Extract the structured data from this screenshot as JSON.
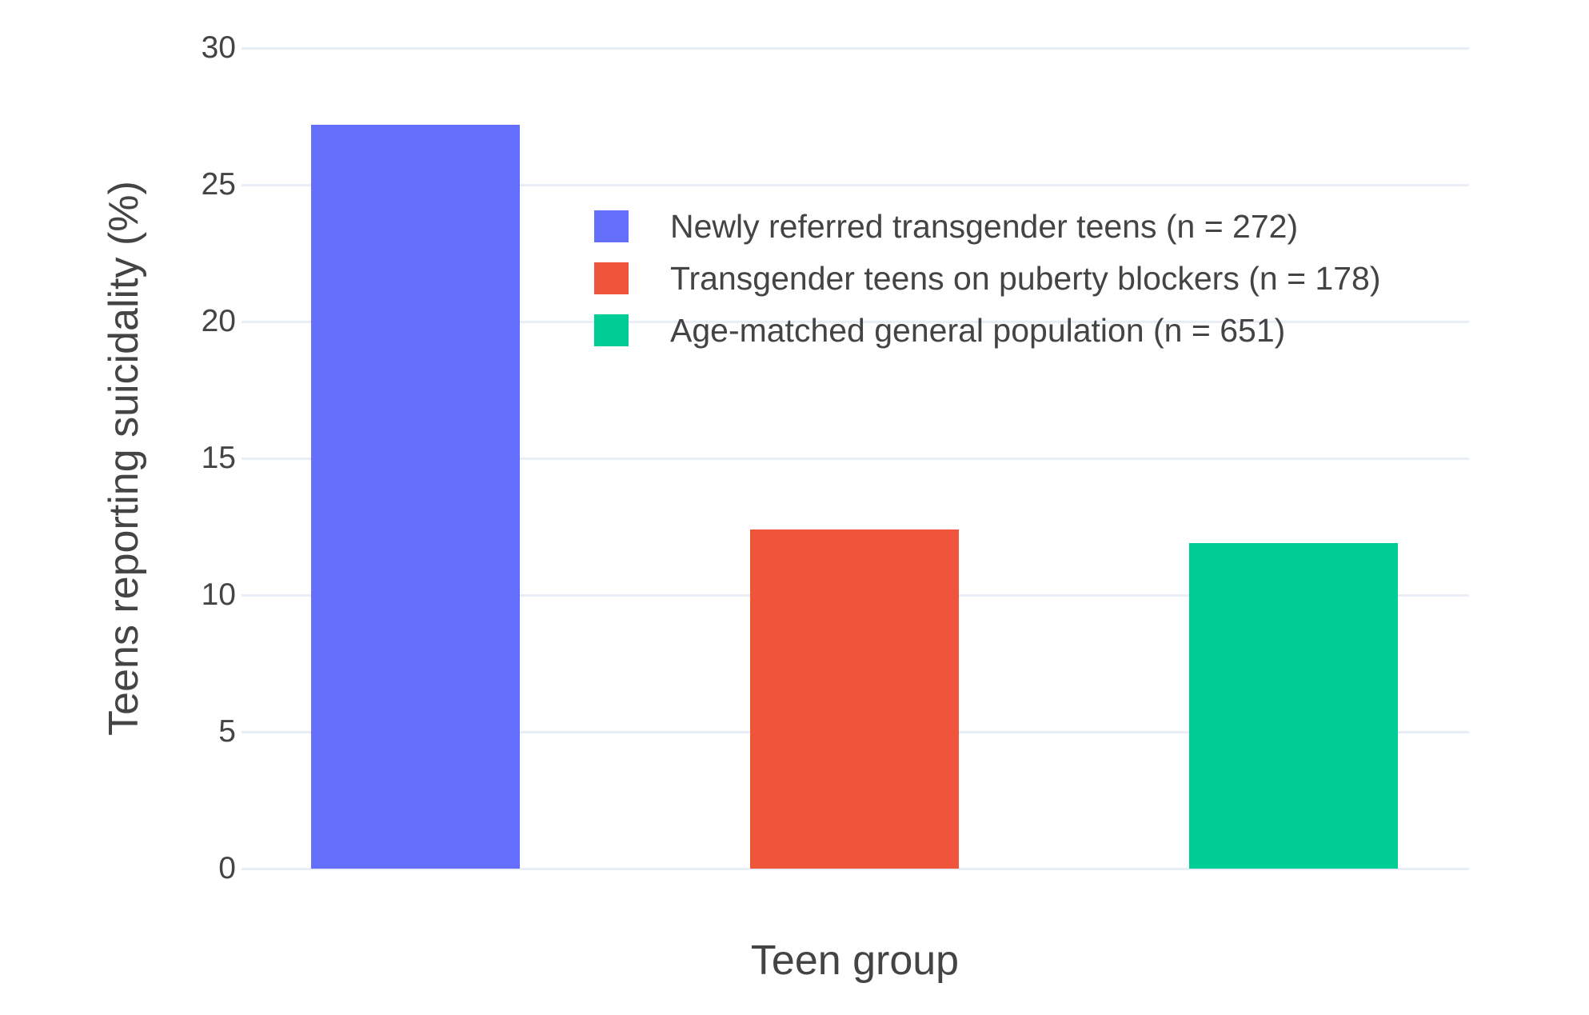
{
  "chart_data": {
    "type": "bar",
    "categories": [
      "Newly referred transgender teens (n = 272)",
      "Transgender teens on puberty blockers (n = 178)",
      "Age-matched general population (n = 651)"
    ],
    "series": [
      {
        "name": "Newly referred transgender teens (n = 272)",
        "value": 27.2,
        "color": "#636EFA"
      },
      {
        "name": "Transgender teens on puberty blockers (n = 178)",
        "value": 12.4,
        "color": "#EF553B"
      },
      {
        "name": "Age-matched general population (n = 651)",
        "value": 11.9,
        "color": "#00CC96"
      }
    ],
    "title": "",
    "xlabel": "Teen group",
    "ylabel": "Teens reporting suicidality (%)",
    "ylim": [
      0,
      30
    ],
    "yticks": [
      0,
      5,
      10,
      15,
      20,
      25,
      30
    ],
    "grid": true,
    "legend_position": "inside-top-center",
    "grid_color": "#E9EDF5",
    "text_color": "#444444",
    "background_color": "#FFFFFF"
  }
}
